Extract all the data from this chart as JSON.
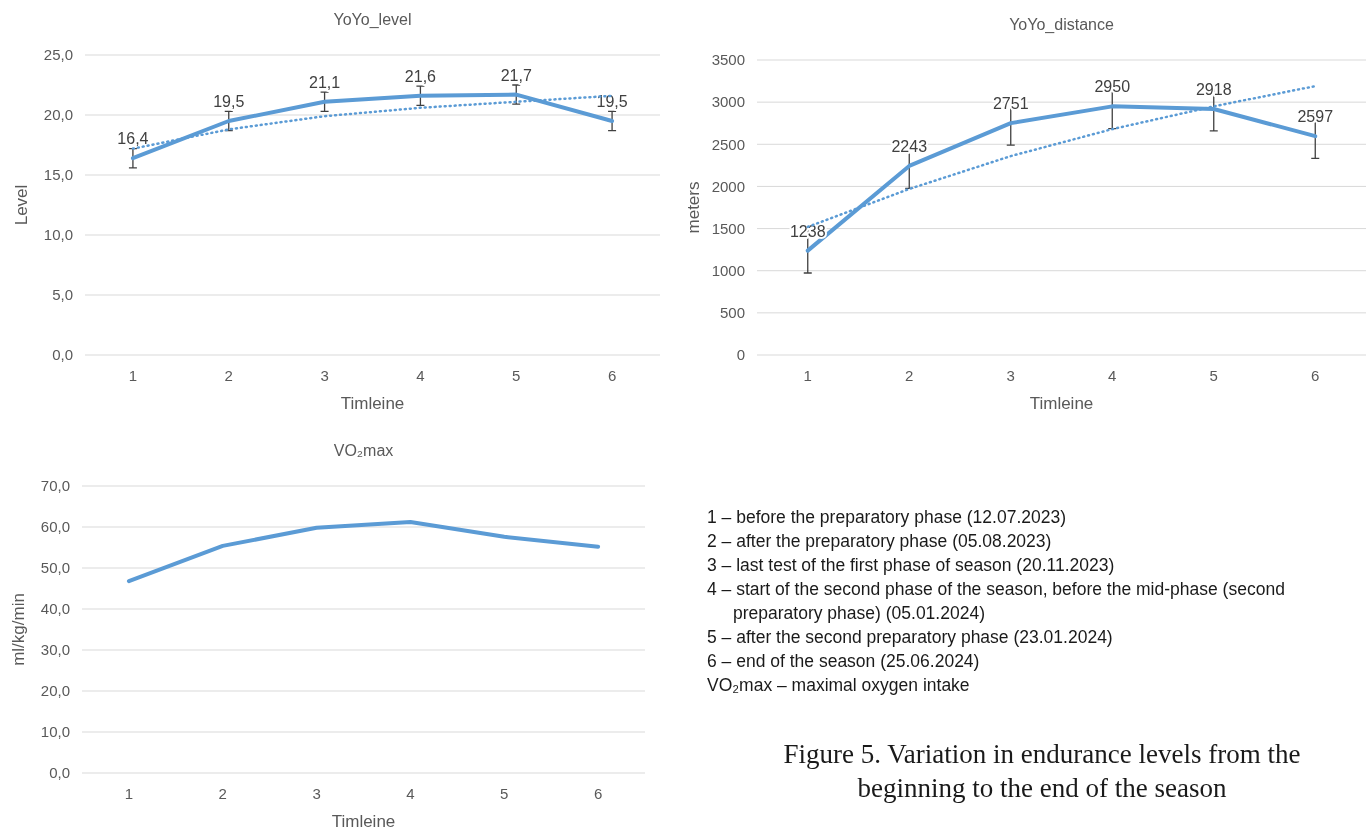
{
  "chart_data": [
    {
      "type": "line",
      "title": "YoYo_level",
      "xlabel": "Timleine",
      "ylabel": "Level",
      "categories": [
        "1",
        "2",
        "3",
        "4",
        "5",
        "6"
      ],
      "ylim": [
        0,
        25
      ],
      "yticks": [
        {
          "value": 0,
          "label": "0,0"
        },
        {
          "value": 5,
          "label": "5,0"
        },
        {
          "value": 10,
          "label": "10,0"
        },
        {
          "value": 15,
          "label": "15,0"
        },
        {
          "value": 20,
          "label": "20,0"
        },
        {
          "value": 25,
          "label": "25,0"
        }
      ],
      "grid": "y",
      "series": [
        {
          "color": "#5b9bd5",
          "line_style": "solid",
          "values": [
            16.4,
            19.5,
            21.1,
            21.6,
            21.7,
            19.5
          ],
          "errors": [
            0.8,
            0.8,
            0.8,
            0.8,
            0.8,
            0.8
          ],
          "value_labels": [
            "16,4",
            "19,5",
            "21,1",
            "21,6",
            "21,7",
            "19,5"
          ]
        },
        {
          "color": "#5b9bd5",
          "line_style": "dotted",
          "values": [
            17.2,
            18.8,
            19.9,
            20.6,
            21.1,
            21.6
          ]
        }
      ]
    },
    {
      "type": "line",
      "title": "YoYo_distance",
      "xlabel": "Timleine",
      "ylabel": "meters",
      "categories": [
        "1",
        "2",
        "3",
        "4",
        "5",
        "6"
      ],
      "ylim": [
        0,
        3500
      ],
      "yticks": [
        0,
        500,
        1000,
        1500,
        2000,
        2500,
        3000,
        3500
      ],
      "grid": "y",
      "series": [
        {
          "color": "#5b9bd5",
          "line_style": "solid",
          "values": [
            1238,
            2243,
            2751,
            2950,
            2918,
            2597
          ],
          "errors": [
            265,
            265,
            260,
            265,
            260,
            265
          ],
          "value_labels": [
            "1238",
            "2243",
            "2751",
            "2950",
            "2918",
            "2597"
          ]
        },
        {
          "color": "#5b9bd5",
          "line_style": "dotted",
          "values": [
            1520,
            1970,
            2360,
            2680,
            2950,
            3190
          ]
        }
      ]
    },
    {
      "type": "line",
      "title": "VO₂max",
      "xlabel": "Timleine",
      "ylabel": "ml/kg/min",
      "categories": [
        "1",
        "2",
        "3",
        "4",
        "5",
        "6"
      ],
      "ylim": [
        0,
        70
      ],
      "yticks": [
        {
          "value": 0,
          "label": "0,0"
        },
        {
          "value": 10,
          "label": "10,0"
        },
        {
          "value": 20,
          "label": "20,0"
        },
        {
          "value": 30,
          "label": "30,0"
        },
        {
          "value": 40,
          "label": "40,0"
        },
        {
          "value": 50,
          "label": "50,0"
        },
        {
          "value": 60,
          "label": "60,0"
        },
        {
          "value": 70,
          "label": "70,0"
        }
      ],
      "grid": "y",
      "series": [
        {
          "color": "#5b9bd5",
          "line_style": "solid",
          "values": [
            46.8,
            55.4,
            59.8,
            61.2,
            57.6,
            55.2
          ]
        }
      ]
    },
    {
      "type": "other",
      "title": "Figure 5. Variation in endurance levels from the beginning to the end of the season",
      "annotations": [
        "1 – before the preparatory phase (12.07.2023)",
        "2 – after the preparatory phase (05.08.2023)",
        "3 – last test of the first phase of season (20.11.2023)",
        "4 – start of the second phase of the season, before the mid-phase (second preparatory phase) (05.01.2024)",
        "5 – after the second preparatory phase (23.01.2024)",
        "6 – end of the season (25.06.2024)",
        "VO₂max – maximal oxygen intake"
      ]
    }
  ]
}
